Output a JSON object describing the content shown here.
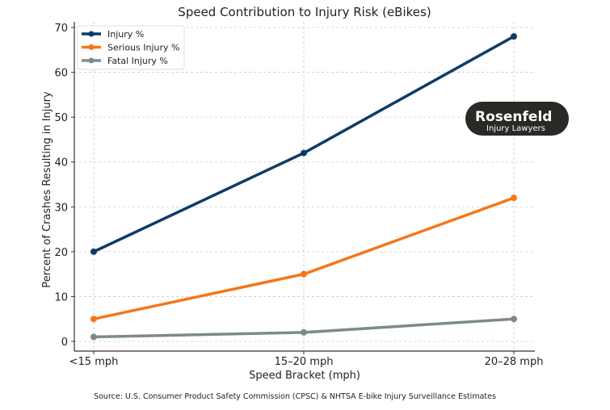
{
  "chart_data": {
    "type": "line",
    "title": "Speed Contribution to Injury Risk (eBikes)",
    "xlabel": "Speed Bracket (mph)",
    "ylabel": "Percent of Crashes Resulting in Injury",
    "categories": [
      "<15 mph",
      "15–20 mph",
      "20–28 mph"
    ],
    "ylim": [
      -2,
      70
    ],
    "yticks": [
      0,
      10,
      20,
      30,
      40,
      50,
      60,
      70
    ],
    "grid": true,
    "legend_position": "top-left",
    "series": [
      {
        "name": "Injury %",
        "values": [
          20,
          42,
          68
        ],
        "color": "#0d3b66"
      },
      {
        "name": "Serious Injury %",
        "values": [
          5,
          15,
          32
        ],
        "color": "#f4761b"
      },
      {
        "name": "Fatal Injury %",
        "values": [
          1,
          2,
          5
        ],
        "color": "#7c8a8e"
      }
    ]
  },
  "logo": {
    "name": "Rosenfeld",
    "subtitle": "Injury Lawyers"
  },
  "source": "Source: U.S. Consumer Product Safety Commission (CPSC) & NHTSA E-bike Injury Surveillance Estimates"
}
